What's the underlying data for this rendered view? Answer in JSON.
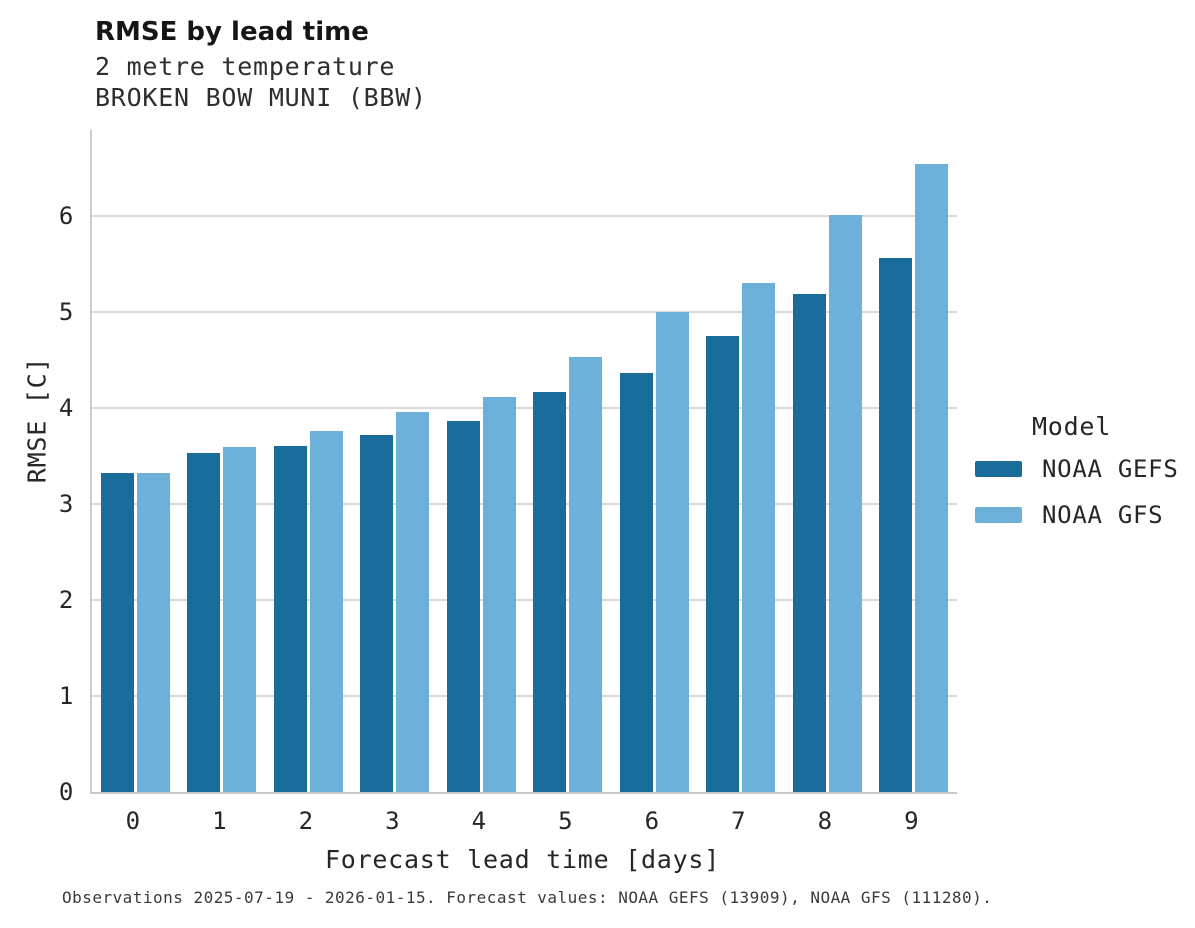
{
  "header": {
    "title": "RMSE by lead time",
    "subtitle_variable": "2 metre temperature",
    "subtitle_station": "BROKEN BOW MUNI (BBW)"
  },
  "chart_data": {
    "type": "bar",
    "title": "RMSE by lead time",
    "subtitle": [
      "2 metre temperature",
      "BROKEN BOW MUNI (BBW)"
    ],
    "categories": [
      "0",
      "1",
      "2",
      "3",
      "4",
      "5",
      "6",
      "7",
      "8",
      "9"
    ],
    "series": [
      {
        "name": "NOAA GEFS",
        "color": "#1A6D9B",
        "values": [
          3.32,
          3.53,
          3.61,
          3.72,
          3.87,
          4.17,
          4.37,
          4.75,
          5.19,
          5.57
        ]
      },
      {
        "name": "NOAA GFS",
        "color": "#6EB1D8",
        "values": [
          3.32,
          3.6,
          3.76,
          3.96,
          4.12,
          4.53,
          5.0,
          5.31,
          6.01,
          6.55
        ]
      }
    ],
    "xlabel": "Forecast lead time [days]",
    "ylabel": "RMSE [C]",
    "ylim": [
      0,
      6.9
    ],
    "yticks": [
      0,
      1,
      2,
      3,
      4,
      5,
      6
    ],
    "grid": "horizontal",
    "legend_title": "Model",
    "legend_position": "right-of-plot"
  },
  "legend": {
    "title": "Model",
    "items": [
      {
        "label": "NOAA GEFS",
        "color": "#1A6D9B"
      },
      {
        "label": "NOAA GFS",
        "color": "#6EB1D8"
      }
    ]
  },
  "footnote": "Observations 2025-07-19 - 2026-01-15. Forecast values: NOAA GEFS (13909), NOAA GFS (111280).",
  "colors": {
    "bar_dark": "#1A6D9B",
    "bar_light": "#6EB1D8",
    "gridline": "#D9D9D9",
    "spine": "#CCCCCC",
    "text": "#262626",
    "background": "#FFFFFF"
  }
}
